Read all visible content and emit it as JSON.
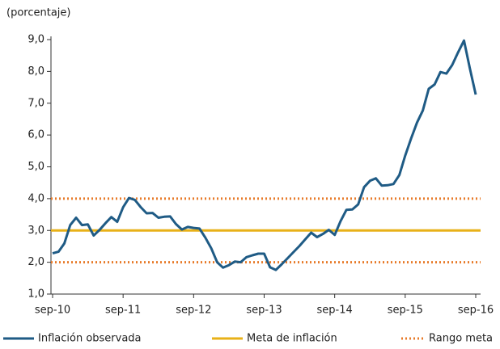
{
  "chart_data": {
    "type": "line",
    "ylabel": "(porcentaje)",
    "categories": [
      "sep-10",
      null,
      null,
      null,
      null,
      null,
      null,
      null,
      null,
      null,
      null,
      null,
      "sep-11",
      null,
      null,
      null,
      null,
      null,
      null,
      null,
      null,
      null,
      null,
      null,
      "sep-12",
      null,
      null,
      null,
      null,
      null,
      null,
      null,
      null,
      null,
      null,
      null,
      "sep-13",
      null,
      null,
      null,
      null,
      null,
      null,
      null,
      null,
      null,
      null,
      null,
      "sep-14",
      null,
      null,
      null,
      null,
      null,
      null,
      null,
      null,
      null,
      null,
      null,
      "sep-15",
      null,
      null,
      null,
      null,
      null,
      null,
      null,
      null,
      null,
      null,
      null,
      "sep-16"
    ],
    "series": [
      {
        "name": "Inflación observada",
        "color": "#1f5b85",
        "values": [
          2.28,
          2.33,
          2.59,
          3.17,
          3.4,
          3.17,
          3.19,
          2.84,
          3.02,
          3.23,
          3.42,
          3.27,
          3.73,
          4.02,
          3.96,
          3.73,
          3.54,
          3.55,
          3.4,
          3.43,
          3.44,
          3.2,
          3.03,
          3.11,
          3.08,
          3.06,
          2.77,
          2.44,
          2.0,
          1.83,
          1.91,
          2.02,
          2.0,
          2.16,
          2.22,
          2.27,
          2.27,
          1.84,
          1.76,
          1.94,
          2.13,
          2.32,
          2.51,
          2.72,
          2.93,
          2.79,
          2.89,
          3.02,
          2.86,
          3.29,
          3.65,
          3.66,
          3.82,
          4.36,
          4.56,
          4.64,
          4.41,
          4.42,
          4.46,
          4.74,
          5.35,
          5.89,
          6.39,
          6.77,
          7.45,
          7.59,
          7.98,
          7.93,
          8.2,
          8.6,
          8.97,
          8.1,
          7.27
        ]
      }
    ],
    "target": {
      "name": "Meta de inflación",
      "color": "#e8b118",
      "value": 3
    },
    "range": {
      "name": "Rango meta",
      "color": "#e87b2a",
      "values": [
        2,
        4
      ]
    },
    "ylim": [
      1,
      9
    ],
    "yticks": [
      {
        "value": 1,
        "label": "1,0"
      },
      {
        "value": 2,
        "label": "2,0"
      },
      {
        "value": 3,
        "label": "3,0"
      },
      {
        "value": 4,
        "label": "4,0"
      },
      {
        "value": 5,
        "label": "5,0"
      },
      {
        "value": 6,
        "label": "6,0"
      },
      {
        "value": 7,
        "label": "7,0"
      },
      {
        "value": 8,
        "label": "8,0"
      },
      {
        "value": 9,
        "label": "9,0"
      }
    ]
  }
}
